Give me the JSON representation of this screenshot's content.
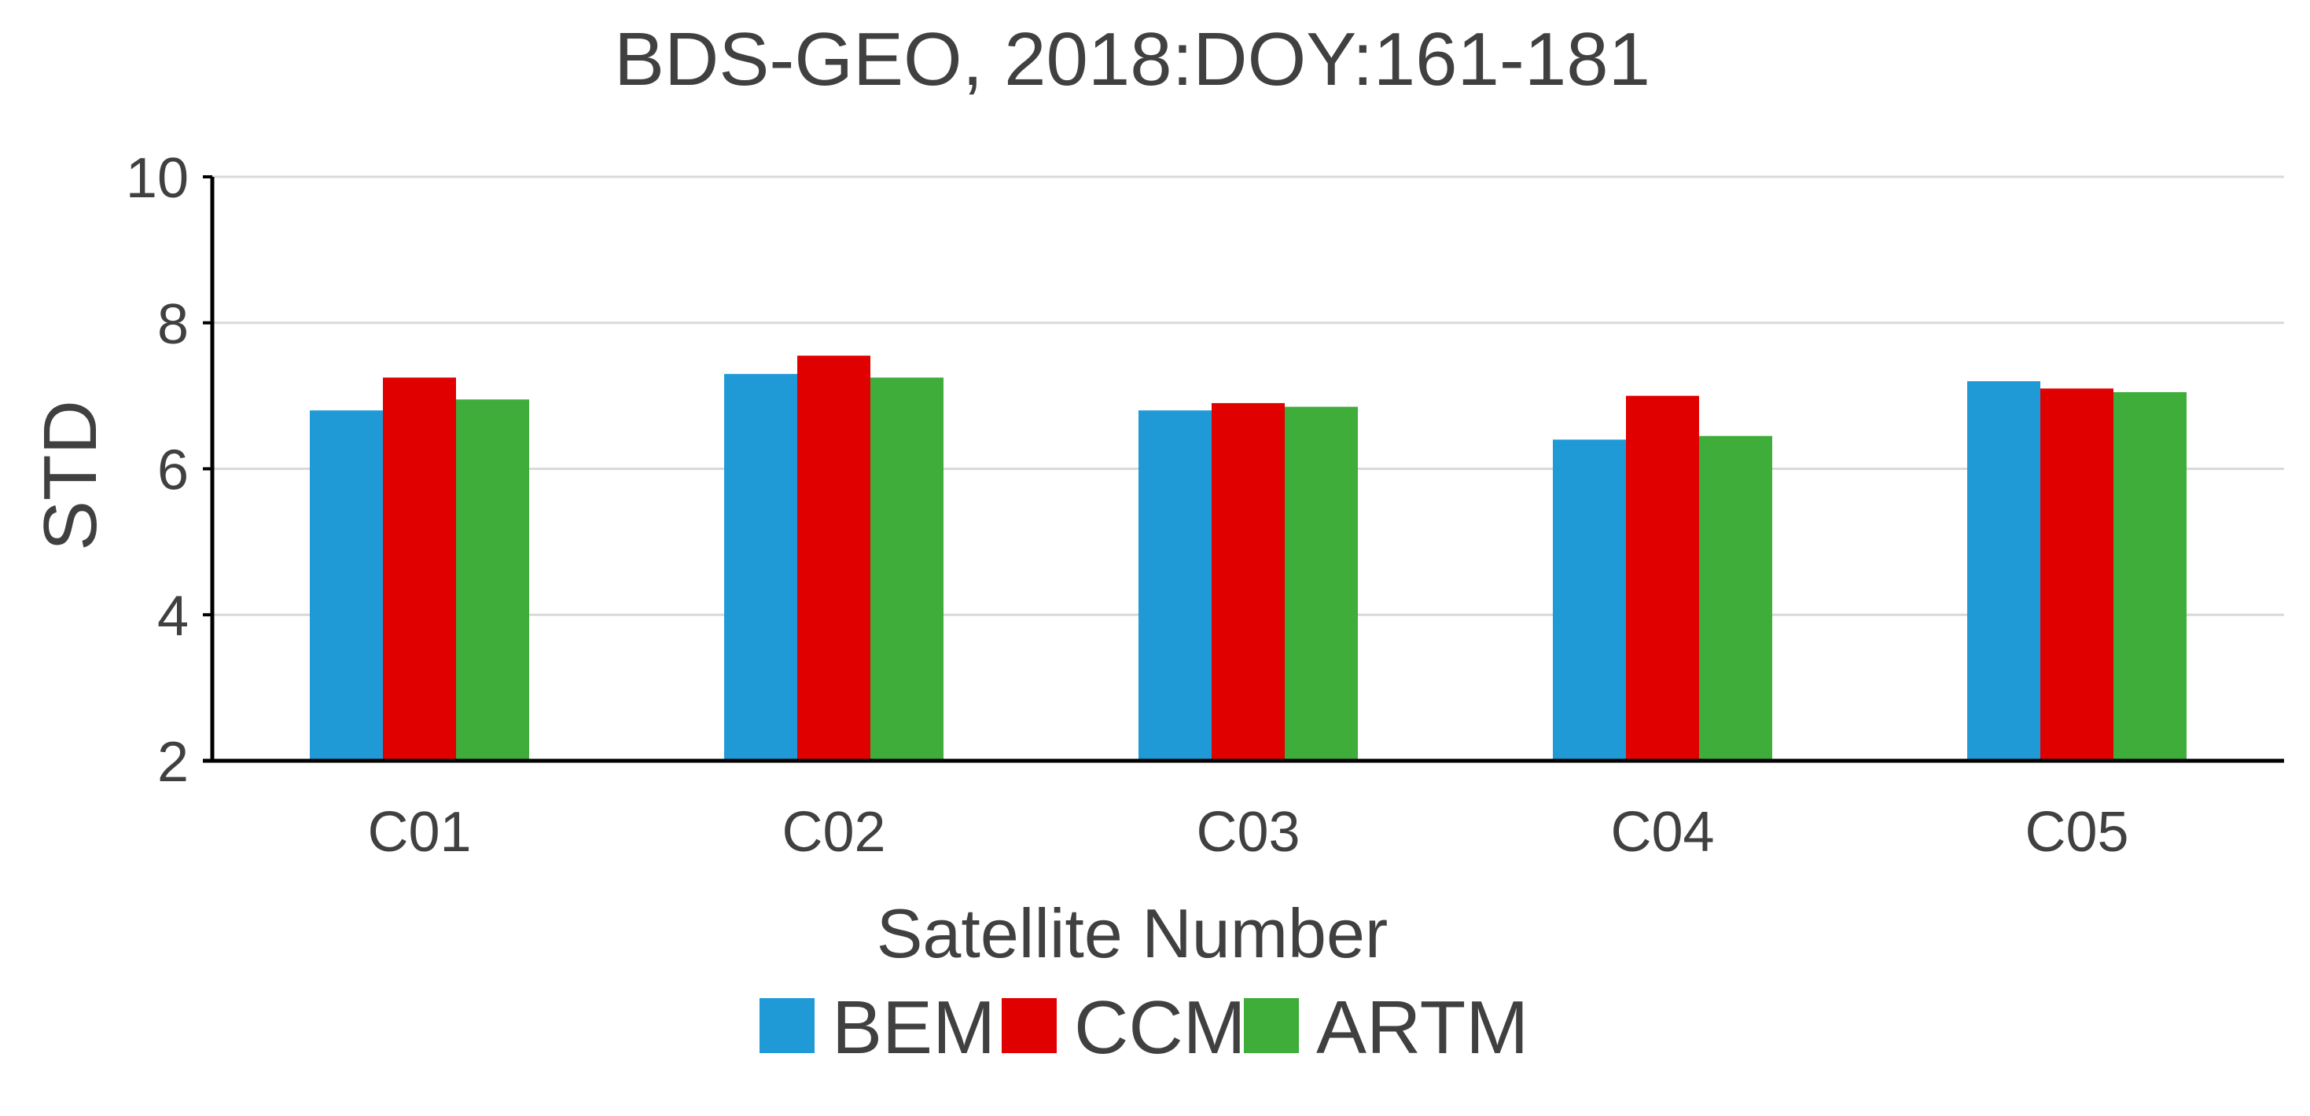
{
  "chart_data": {
    "type": "bar",
    "title": "BDS-GEO, 2018:DOY:161-181",
    "xlabel": "Satellite Number",
    "ylabel": "STD",
    "categories": [
      "C01",
      "C02",
      "C03",
      "C04",
      "C05"
    ],
    "ylim": [
      2,
      10
    ],
    "yticks": [
      2,
      4,
      6,
      8,
      10
    ],
    "grid": true,
    "legend_position": "bottom",
    "series": [
      {
        "name": "BEM",
        "color": "#1f9ad6",
        "values": [
          6.8,
          7.3,
          6.8,
          6.4,
          7.2
        ]
      },
      {
        "name": "CCM",
        "color": "#e00000",
        "values": [
          7.25,
          7.55,
          6.9,
          7.0,
          7.1
        ]
      },
      {
        "name": "ARTM",
        "color": "#3fad3a",
        "values": [
          6.95,
          7.25,
          6.85,
          6.45,
          7.05
        ]
      }
    ]
  }
}
